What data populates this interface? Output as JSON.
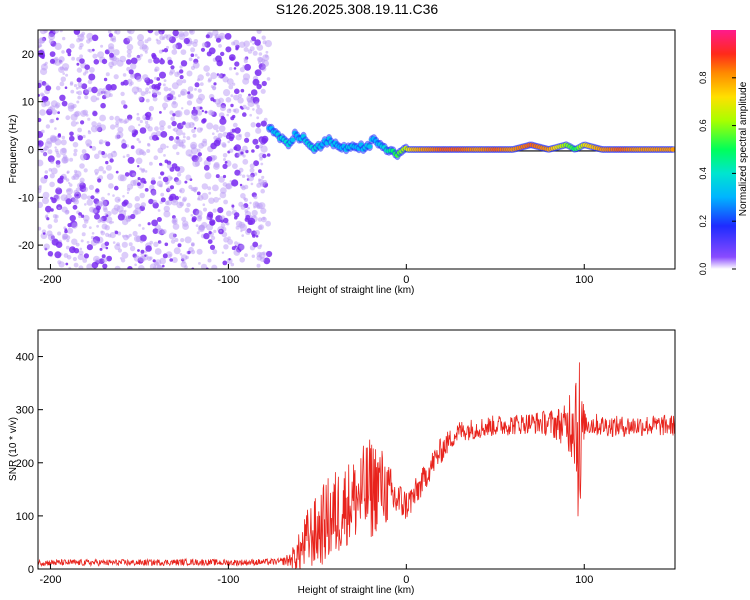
{
  "title": "S126.2025.308.19.11.C36",
  "chart_data": [
    {
      "type": "heatmap",
      "title": "S126.2025.308.19.11.C36",
      "xlabel": "Height of straight line (km)",
      "ylabel": "Frequency (Hz)",
      "xlim": [
        -207,
        151
      ],
      "ylim": [
        -25,
        25
      ],
      "x_ticks": [
        -200,
        -100,
        0,
        100
      ],
      "x_tick_labels": [
        "-200",
        "-100",
        "0",
        "100"
      ],
      "y_ticks": [
        20,
        10,
        0,
        -10,
        -20
      ],
      "y_tick_labels": [
        "20",
        "10",
        "0",
        "-10",
        "-20"
      ],
      "noise_region_x": [
        -207,
        -77
      ],
      "signal_trace": {
        "x": [
          -77,
          -72,
          -67,
          -62,
          -57,
          -52,
          -47,
          -42,
          -37,
          -32,
          -27,
          -22,
          -17,
          -12,
          -7,
          -2,
          3,
          10,
          20,
          30,
          40,
          50,
          60,
          70,
          80,
          90,
          95,
          100,
          110,
          120,
          130,
          140,
          151
        ],
        "y": [
          4,
          3,
          1,
          3,
          2,
          0,
          1,
          2,
          0,
          1,
          0,
          1,
          2,
          0,
          -1,
          0,
          0,
          0,
          0,
          0,
          0,
          0,
          0,
          1,
          0,
          1,
          0,
          1,
          0,
          0,
          0,
          0,
          0
        ],
        "amplitude": [
          0.3,
          0.35,
          0.4,
          0.3,
          0.35,
          0.4,
          0.3,
          0.35,
          0.3,
          0.35,
          0.3,
          0.35,
          0.3,
          0.4,
          0.5,
          0.6,
          0.75,
          0.8,
          0.85,
          0.85,
          0.8,
          0.85,
          0.8,
          0.85,
          0.8,
          0.6,
          0.5,
          0.7,
          0.8,
          0.85,
          0.8,
          0.8,
          0.8
        ]
      },
      "colorbar": {
        "label": "Normalized spectral amplitude",
        "range": [
          0,
          1
        ],
        "ticks": [
          0.0,
          0.2,
          0.4,
          0.6,
          0.8
        ],
        "tick_labels": [
          "0.0",
          "0.2",
          "0.4",
          "0.6",
          "0.8"
        ]
      }
    },
    {
      "type": "line",
      "xlabel": "Height of straight line (km)",
      "ylabel": "SNR (10 * v/v)",
      "xlim": [
        -207,
        151
      ],
      "ylim": [
        0,
        450
      ],
      "x_ticks": [
        -200,
        -100,
        0,
        100
      ],
      "x_tick_labels": [
        "-200",
        "-100",
        "0",
        "100"
      ],
      "y_ticks": [
        0,
        100,
        200,
        300,
        400
      ],
      "y_tick_labels": [
        "0",
        "100",
        "200",
        "300",
        "400"
      ],
      "series": [
        {
          "name": "SNR",
          "color": "#e8231c",
          "x": [
            -207,
            -180,
            -150,
            -120,
            -100,
            -80,
            -70,
            -65,
            -60,
            -55,
            -50,
            -45,
            -40,
            -35,
            -30,
            -25,
            -20,
            -15,
            -10,
            -5,
            0,
            5,
            10,
            15,
            20,
            25,
            30,
            40,
            50,
            60,
            70,
            80,
            90,
            95,
            97,
            98,
            99,
            100,
            110,
            120,
            130,
            140,
            151
          ],
          "y": [
            12,
            12,
            12,
            13,
            12,
            13,
            14,
            18,
            30,
            60,
            70,
            90,
            100,
            120,
            130,
            140,
            150,
            160,
            140,
            130,
            120,
            140,
            170,
            200,
            225,
            245,
            260,
            265,
            270,
            272,
            275,
            275,
            270,
            300,
            250,
            150,
            270,
            275,
            270,
            268,
            270,
            270,
            270
          ],
          "noise_amplitude": [
            6,
            6,
            6,
            6,
            6,
            6,
            6,
            15,
            40,
            60,
            70,
            80,
            90,
            80,
            80,
            90,
            100,
            80,
            60,
            40,
            30,
            30,
            25,
            25,
            25,
            20,
            20,
            20,
            20,
            20,
            20,
            25,
            40,
            120,
            200,
            200,
            60,
            25,
            20,
            20,
            20,
            20,
            20
          ]
        }
      ]
    }
  ]
}
